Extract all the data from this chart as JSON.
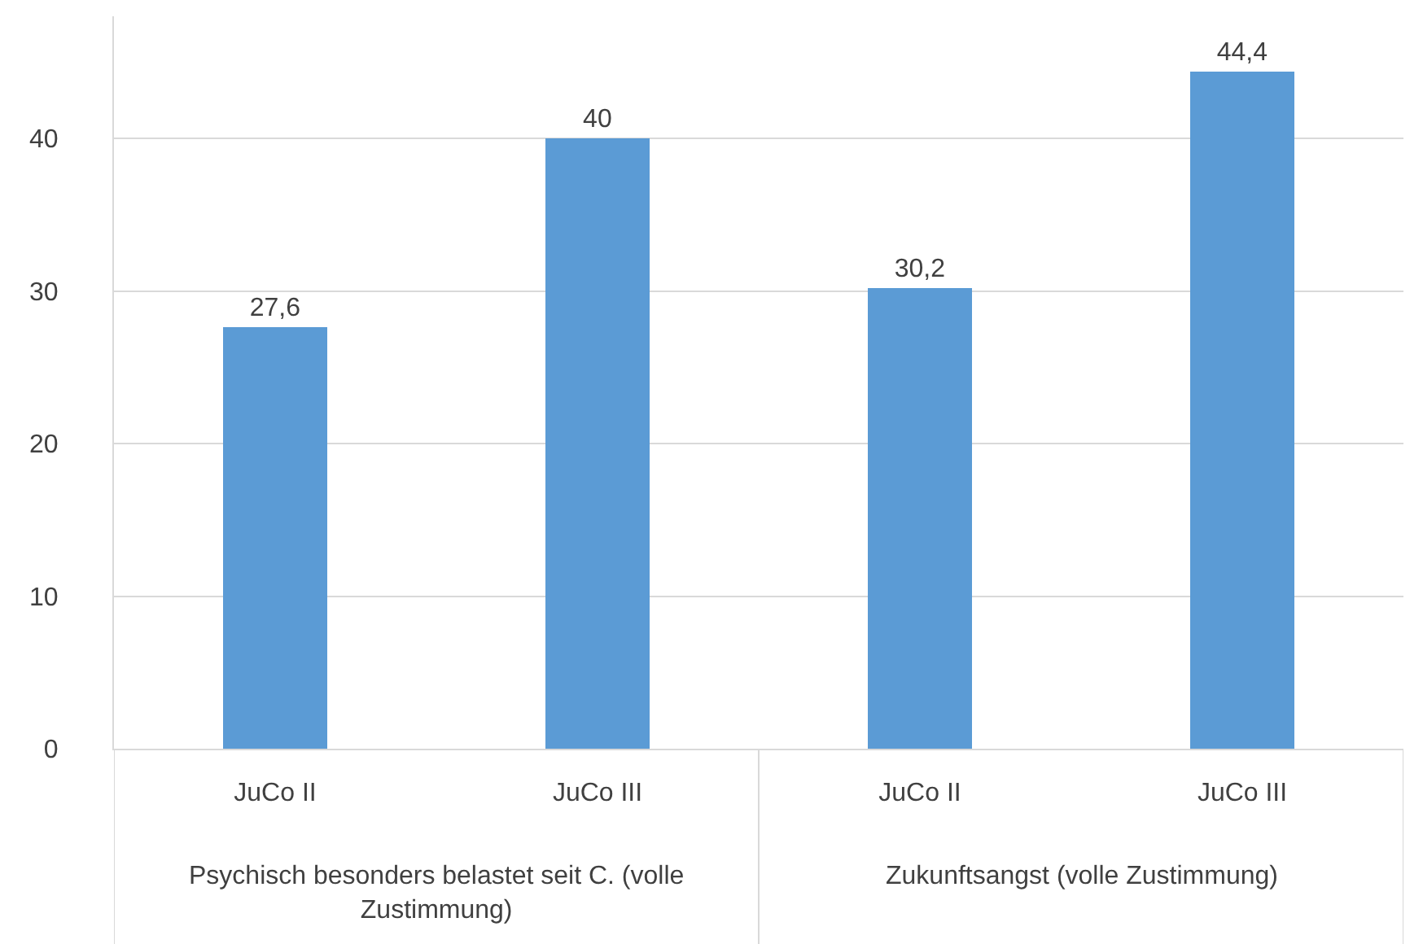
{
  "chart_data": {
    "type": "bar",
    "categories": [
      "JuCo II",
      "JuCo III",
      "JuCo II",
      "JuCo III"
    ],
    "values": [
      27.6,
      40,
      30.2,
      44.4
    ],
    "color": "#5b9bd5",
    "value_labels": [
      "27,6",
      "40",
      "30,2",
      "44,4"
    ],
    "ylim": [
      0,
      48
    ],
    "yticks": [
      0,
      10,
      20,
      30,
      40
    ],
    "grid": "y",
    "annotations": [
      "Psychisch besonders belastet seit C. (volle Zustimmung)",
      "Zukunftsangst (volle Zustimmung)"
    ]
  }
}
